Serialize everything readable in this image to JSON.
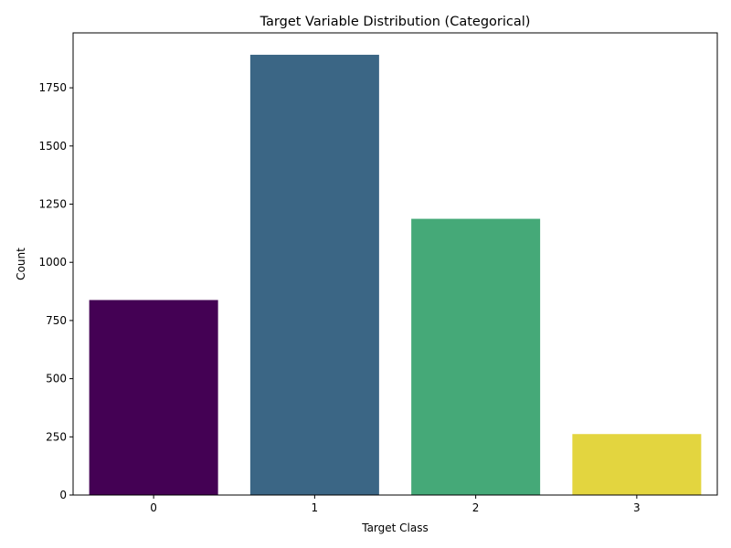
{
  "chart_data": {
    "type": "bar",
    "title": "Target Variable Distribution (Categorical)",
    "xlabel": "Target Class",
    "ylabel": "Count",
    "categories": [
      "0",
      "1",
      "2",
      "3"
    ],
    "values": [
      838,
      1892,
      1187,
      262
    ],
    "ylim": [
      0,
      1986
    ],
    "yticks": [
      0,
      250,
      500,
      750,
      1000,
      1250,
      1500,
      1750
    ],
    "grid": false,
    "legend": "none",
    "colors": [
      "#440154",
      "#3b6685",
      "#45a978",
      "#e3d53f"
    ]
  }
}
